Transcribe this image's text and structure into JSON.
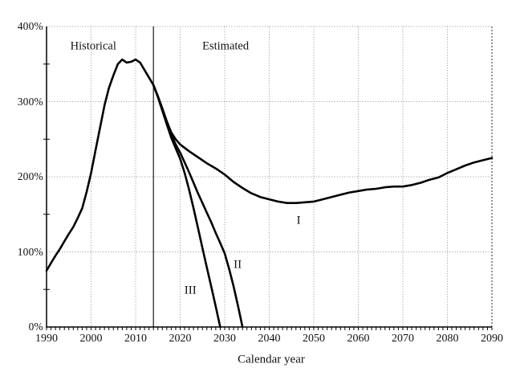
{
  "chart_data": {
    "type": "line",
    "title": "",
    "xlabel": "Calendar year",
    "ylabel": "",
    "xlim": [
      1990,
      2090
    ],
    "ylim": [
      0,
      400
    ],
    "x_ticks": [
      1990,
      2000,
      2010,
      2020,
      2030,
      2040,
      2050,
      2060,
      2070,
      2080,
      2090
    ],
    "x_tick_labels": [
      "1990",
      "2000",
      "2010",
      "2020",
      "2030",
      "2040",
      "2050",
      "2060",
      "2070",
      "2080",
      "2090"
    ],
    "y_ticks": [
      0,
      100,
      200,
      300,
      400
    ],
    "y_tick_labels": [
      "0%",
      "100%",
      "200%",
      "300%",
      "400%"
    ],
    "y_minor_ticks": [
      50,
      150,
      250,
      350
    ],
    "grid": "dotted",
    "legend_position": "none",
    "divider_year": 2014,
    "region_labels": [
      {
        "key": "historical",
        "text": "Historical",
        "x": 2000.5,
        "y": 373
      },
      {
        "key": "estimated",
        "text": "Estimated",
        "x": 2030.2,
        "y": 373
      }
    ],
    "series_labels": [
      {
        "key": "alt1",
        "text": "I",
        "x": 2046.6,
        "y": 141
      },
      {
        "key": "alt2",
        "text": "II",
        "x": 2032.9,
        "y": 82
      },
      {
        "key": "alt3",
        "text": "III",
        "x": 2022.3,
        "y": 48
      }
    ],
    "colors": {
      "line": "#000000",
      "grid": "#949494",
      "axis": "#000000",
      "divider": "#1a1a1a",
      "background": "#ffffff"
    },
    "series": [
      {
        "name": "Historical",
        "points": [
          [
            1990,
            75
          ],
          [
            1991,
            85
          ],
          [
            1992,
            95
          ],
          [
            1993,
            104
          ],
          [
            1994,
            114
          ],
          [
            1995,
            124
          ],
          [
            1996,
            133
          ],
          [
            1997,
            145
          ],
          [
            1998,
            158
          ],
          [
            1999,
            180
          ],
          [
            2000,
            205
          ],
          [
            2001,
            235
          ],
          [
            2002,
            265
          ],
          [
            2003,
            295
          ],
          [
            2004,
            318
          ],
          [
            2005,
            335
          ],
          [
            2006,
            350
          ],
          [
            2007,
            356
          ],
          [
            2008,
            352
          ],
          [
            2009,
            353
          ],
          [
            2010,
            356
          ],
          [
            2011,
            352
          ],
          [
            2012,
            342
          ],
          [
            2013,
            332
          ],
          [
            2014,
            322
          ]
        ]
      },
      {
        "name": "Alternative I",
        "points": [
          [
            2014,
            322
          ],
          [
            2015,
            307
          ],
          [
            2016,
            291
          ],
          [
            2017,
            274
          ],
          [
            2018,
            259
          ],
          [
            2019,
            250
          ],
          [
            2020,
            243
          ],
          [
            2022,
            234
          ],
          [
            2024,
            226
          ],
          [
            2026,
            218
          ],
          [
            2028,
            211
          ],
          [
            2030,
            203
          ],
          [
            2032,
            193
          ],
          [
            2034,
            185
          ],
          [
            2036,
            178
          ],
          [
            2038,
            173
          ],
          [
            2040,
            170
          ],
          [
            2042,
            167
          ],
          [
            2044,
            165
          ],
          [
            2046,
            165
          ],
          [
            2048,
            166
          ],
          [
            2050,
            167
          ],
          [
            2052,
            170
          ],
          [
            2054,
            173
          ],
          [
            2056,
            176
          ],
          [
            2058,
            179
          ],
          [
            2060,
            181
          ],
          [
            2062,
            183
          ],
          [
            2064,
            184
          ],
          [
            2066,
            186
          ],
          [
            2068,
            187
          ],
          [
            2070,
            187
          ],
          [
            2072,
            189
          ],
          [
            2074,
            192
          ],
          [
            2076,
            196
          ],
          [
            2078,
            199
          ],
          [
            2080,
            205
          ],
          [
            2082,
            210
          ],
          [
            2084,
            215
          ],
          [
            2086,
            219
          ],
          [
            2088,
            222
          ],
          [
            2090,
            225
          ]
        ]
      },
      {
        "name": "Alternative II",
        "points": [
          [
            2014,
            322
          ],
          [
            2015,
            307
          ],
          [
            2016,
            290
          ],
          [
            2017,
            272
          ],
          [
            2018,
            256
          ],
          [
            2019,
            243
          ],
          [
            2020,
            232
          ],
          [
            2021,
            219
          ],
          [
            2022,
            206
          ],
          [
            2023,
            192
          ],
          [
            2024,
            178
          ],
          [
            2025,
            165
          ],
          [
            2026,
            152
          ],
          [
            2027,
            139
          ],
          [
            2028,
            125
          ],
          [
            2029,
            112
          ],
          [
            2030,
            98
          ],
          [
            2031,
            77
          ],
          [
            2032,
            54
          ],
          [
            2033,
            28
          ],
          [
            2034,
            0
          ]
        ]
      },
      {
        "name": "Alternative III",
        "points": [
          [
            2014,
            322
          ],
          [
            2015,
            306
          ],
          [
            2016,
            288
          ],
          [
            2017,
            270
          ],
          [
            2018,
            252
          ],
          [
            2019,
            238
          ],
          [
            2020,
            224
          ],
          [
            2021,
            205
          ],
          [
            2022,
            183
          ],
          [
            2023,
            158
          ],
          [
            2024,
            132
          ],
          [
            2025,
            105
          ],
          [
            2026,
            79
          ],
          [
            2027,
            53
          ],
          [
            2028,
            27
          ],
          [
            2029,
            0
          ]
        ]
      }
    ]
  }
}
